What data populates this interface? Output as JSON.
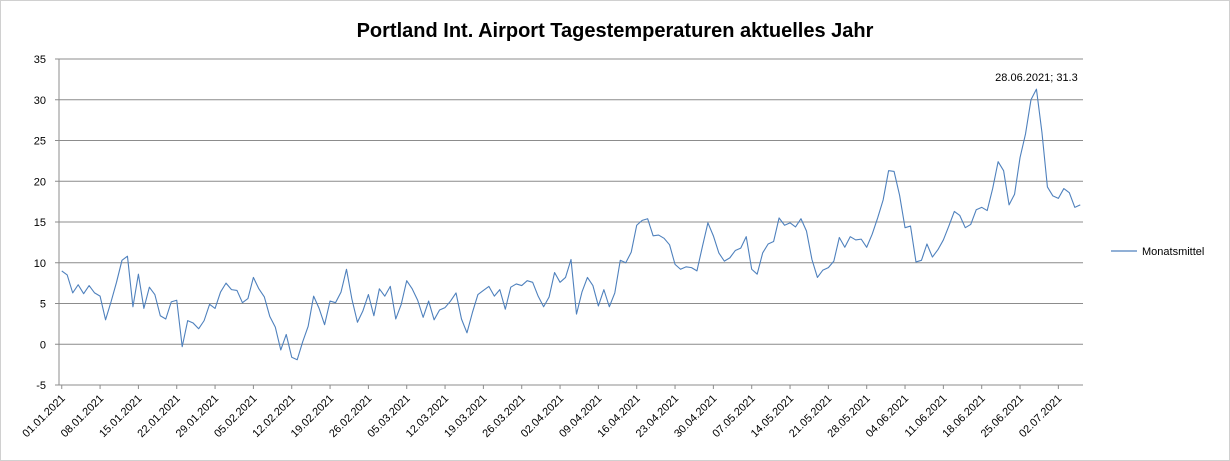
{
  "chart_data": {
    "type": "line",
    "title": "Portland Int. Airport Tagestemperaturen aktuelles Jahr",
    "xlabel": "",
    "ylabel": "",
    "ylim": [
      -5,
      35
    ],
    "yticks": [
      "35",
      "30",
      "25",
      "20",
      "15",
      "10",
      "5",
      "0",
      "-5"
    ],
    "xticks": [
      "01.01.2021",
      "08.01.2021",
      "15.01.2021",
      "22.01.2021",
      "29.01.2021",
      "05.02.2021",
      "12.02.2021",
      "19.02.2021",
      "26.02.2021",
      "05.03.2021",
      "12.03.2021",
      "19.03.2021",
      "26.03.2021",
      "02.04.2021",
      "09.04.2021",
      "16.04.2021",
      "23.04.2021",
      "30.04.2021",
      "07.05.2021",
      "14.05.2021",
      "21.05.2021",
      "28.05.2021",
      "04.06.2021",
      "11.06.2021",
      "18.06.2021",
      "25.06.2021",
      "02.07.2021"
    ],
    "grid": "horizontal",
    "legend_position": "right",
    "line_color": "#4f81bd",
    "annotation": "28.06.2021; 31.3",
    "series": [
      {
        "name": "Monatsmittel",
        "start_date": "01.01.2021",
        "values": [
          9.0,
          8.5,
          6.3,
          7.3,
          6.2,
          7.2,
          6.3,
          5.9,
          3.0,
          5.2,
          7.6,
          10.3,
          10.8,
          4.6,
          8.6,
          4.4,
          7.0,
          6.1,
          3.5,
          3.1,
          5.2,
          5.4,
          -0.3,
          2.9,
          2.6,
          1.9,
          2.9,
          4.9,
          4.4,
          6.4,
          7.5,
          6.7,
          6.6,
          5.1,
          5.6,
          8.2,
          6.8,
          5.8,
          3.4,
          2.1,
          -0.7,
          1.2,
          -1.6,
          -1.9,
          0.3,
          2.2,
          5.9,
          4.4,
          2.4,
          5.3,
          5.1,
          6.4,
          9.2,
          5.5,
          2.7,
          4.1,
          6.1,
          3.5,
          6.8,
          5.9,
          7.1,
          3.1,
          4.9,
          7.8,
          6.8,
          5.4,
          3.3,
          5.3,
          3.0,
          4.2,
          4.5,
          5.3,
          6.3,
          3.1,
          1.4,
          3.9,
          6.1,
          6.6,
          7.1,
          5.9,
          6.7,
          4.3,
          7.0,
          7.4,
          7.2,
          7.8,
          7.6,
          5.9,
          4.6,
          5.8,
          8.8,
          7.6,
          8.2,
          10.4,
          3.7,
          6.4,
          8.2,
          7.2,
          4.7,
          6.7,
          4.6,
          6.3,
          10.3,
          10.0,
          11.3,
          14.6,
          15.2,
          15.4,
          13.3,
          13.4,
          13.0,
          12.2,
          9.8,
          9.2,
          9.5,
          9.4,
          9.0,
          12.0,
          14.9,
          13.3,
          11.2,
          10.2,
          10.6,
          11.5,
          11.8,
          13.2,
          9.2,
          8.6,
          11.2,
          12.3,
          12.6,
          15.5,
          14.6,
          14.9,
          14.4,
          15.4,
          13.9,
          10.4,
          8.2,
          9.1,
          9.4,
          10.2,
          13.1,
          11.9,
          13.2,
          12.8,
          12.9,
          11.9,
          13.5,
          15.5,
          17.7,
          21.3,
          21.2,
          18.3,
          14.3,
          14.5,
          10.1,
          10.3,
          12.3,
          10.7,
          11.6,
          12.8,
          14.5,
          16.3,
          15.8,
          14.3,
          14.7,
          16.5,
          16.8,
          16.4,
          19.1,
          22.4,
          21.3,
          17.1,
          18.4,
          22.9,
          25.8,
          30.0,
          31.3,
          26.0,
          19.3,
          18.2,
          17.9,
          19.1,
          18.6,
          16.8,
          17.1
        ]
      }
    ]
  }
}
